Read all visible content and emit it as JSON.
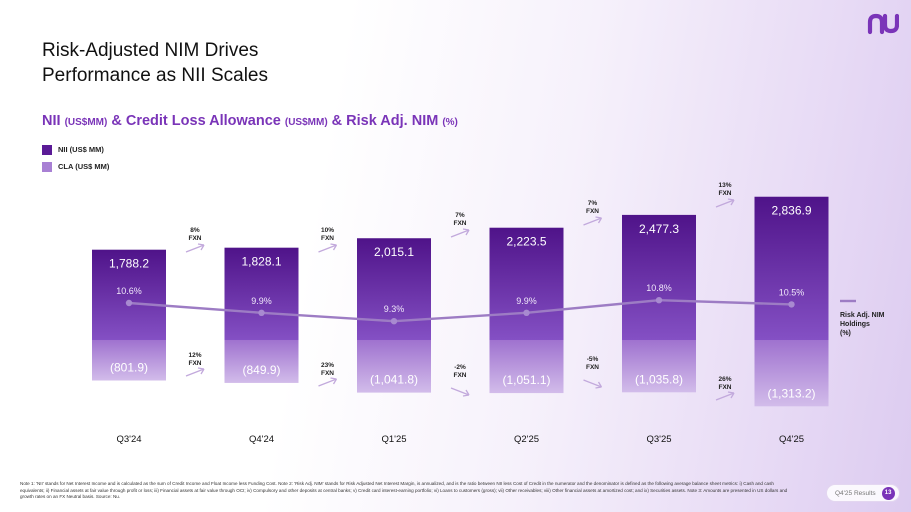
{
  "header": {
    "title_line1": "Risk-Adjusted NIM Drives",
    "title_line2": "Performance as NII Scales"
  },
  "subtitle": {
    "part1": "NII ",
    "unit1": "(US$MM)",
    "part2": " & Credit Loss Allowance ",
    "unit2": "(US$MM)",
    "part3": " & Risk Adj. NIM ",
    "unit3": "(%)"
  },
  "legend": {
    "nii": "NII (US$ MM)",
    "cla": "CLA (US$ MM)"
  },
  "colors": {
    "accent": "#7a34b8",
    "nii_bar_top": "#5a1a96",
    "nii_bar_bottom": "#7f46c0",
    "cla_bar_top": "#a176d0",
    "cla_bar_bottom": "#cdb5e8",
    "nim_line": "#9d7cc4"
  },
  "chart_data": {
    "type": "bar",
    "categories": [
      "Q3'24",
      "Q4'24",
      "Q1'25",
      "Q2'25",
      "Q3'25",
      "Q4'25"
    ],
    "series": [
      {
        "name": "NII (US$ MM)",
        "values": [
          1788.2,
          1828.1,
          2015.1,
          2223.5,
          2477.3,
          2836.9
        ],
        "labels": [
          "1,788.2",
          "1,828.1",
          "2,015.1",
          "2,223.5",
          "2,477.3",
          "2,836.9"
        ]
      },
      {
        "name": "CLA (US$ MM)",
        "values": [
          -801.9,
          -849.9,
          -1041.8,
          -1051.1,
          -1035.8,
          -1313.2
        ],
        "labels": [
          "(801.9)",
          "(849.9)",
          "(1,041.8)",
          "(1,051.1)",
          "(1,035.8)",
          "(1,313.2)"
        ]
      },
      {
        "name": "Risk Adj. NIM Holdings (%)",
        "values": [
          10.6,
          9.9,
          9.3,
          9.9,
          10.8,
          10.5
        ],
        "labels": [
          "10.6%",
          "9.9%",
          "9.3%",
          "9.9%",
          "10.8%",
          "10.5%"
        ]
      }
    ],
    "line_legend_line1": "Risk Adj. NIM",
    "line_legend_line2": "Holdings",
    "line_legend_line3": "(%)",
    "nii_growth": [
      {
        "pct": "8%",
        "sub": "FXN"
      },
      {
        "pct": "10%",
        "sub": "FXN"
      },
      {
        "pct": "7%",
        "sub": "FXN"
      },
      {
        "pct": "7%",
        "sub": "FXN"
      },
      {
        "pct": "13%",
        "sub": "FXN"
      }
    ],
    "cla_growth": [
      {
        "pct": "12%",
        "sub": "FXN"
      },
      {
        "pct": "23%",
        "sub": "FXN"
      },
      {
        "pct": "-2%",
        "sub": "FXN"
      },
      {
        "pct": "-5%",
        "sub": "FXN"
      },
      {
        "pct": "26%",
        "sub": "FXN"
      }
    ]
  },
  "footnote": "Note 1: 'NII' stands for Net Interest Income and is calculated as the sum of Credit Income and Float Income less Funding Cost. Note 2: 'Risk Adj. NIM' stands for Risk Adjusted Net Interest Margin, is annualized, and is the ratio between NII less Cost of Credit in the numerator and the denominator is defined as the following average balance sheet metrics: i) Cash and cash equivalents; ii) Financial assets at fair value through profit or loss; iii) Financial assets at fair value through OCI; iv) Compulsory and other deposits at central banks; v) Credit card interest-earning portfolio; vi) Loans to customers (gross); vii) Other receivables; viii) Other financial assets at amortized cost; and ix) Securities assets. Note 3: Amounts are presented in US dollars and growth rates on an FX Neutral basis. Source: Nu.",
  "page": {
    "tag": "Q4'25 Results",
    "number": "13"
  }
}
